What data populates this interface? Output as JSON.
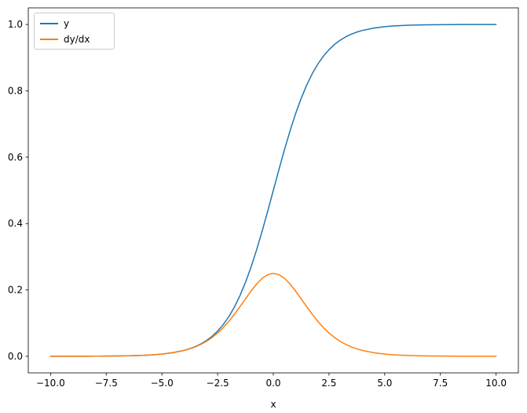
{
  "chart_data": {
    "type": "line",
    "title": "",
    "xlabel": "x",
    "ylabel": "",
    "xlim": [
      -11,
      11
    ],
    "ylim": [
      -0.05,
      1.05
    ],
    "x_ticks": [
      -10.0,
      -7.5,
      -5.0,
      -2.5,
      0.0,
      2.5,
      5.0,
      7.5,
      10.0
    ],
    "y_ticks": [
      0.0,
      0.2,
      0.4,
      0.6,
      0.8,
      1.0
    ],
    "grid": false,
    "legend_position": "upper left",
    "background_color": "#ffffff",
    "axis_color": "#000000",
    "x": [
      -10,
      -9.5,
      -9,
      -8.5,
      -8,
      -7.5,
      -7,
      -6.5,
      -6,
      -5.5,
      -5,
      -4.5,
      -4,
      -3.75,
      -3.5,
      -3.25,
      -3,
      -2.75,
      -2.5,
      -2.25,
      -2,
      -1.75,
      -1.5,
      -1.25,
      -1,
      -0.75,
      -0.5,
      -0.25,
      0,
      0.25,
      0.5,
      0.75,
      1,
      1.25,
      1.5,
      1.75,
      2,
      2.25,
      2.5,
      2.75,
      3,
      3.25,
      3.5,
      3.75,
      4,
      4.5,
      5,
      5.5,
      6,
      6.5,
      7,
      7.5,
      8,
      8.5,
      9,
      9.5,
      10
    ],
    "series": [
      {
        "name": "y",
        "color": "#1f77b4",
        "values": [
          5e-05,
          7e-05,
          0.00012,
          0.0002,
          0.00034,
          0.00055,
          0.00091,
          0.0015,
          0.00247,
          0.00407,
          0.00669,
          0.011,
          0.01799,
          0.02297,
          0.02931,
          0.03732,
          0.04743,
          0.06008,
          0.07586,
          0.09534,
          0.1192,
          0.14805,
          0.18243,
          0.2227,
          0.26894,
          0.32082,
          0.37754,
          0.43782,
          0.5,
          0.56218,
          0.62246,
          0.67918,
          0.73106,
          0.7773,
          0.81757,
          0.85195,
          0.8808,
          0.90466,
          0.92414,
          0.93992,
          0.95257,
          0.96268,
          0.97069,
          0.97703,
          0.98201,
          0.989,
          0.99331,
          0.99593,
          0.99753,
          0.9985,
          0.99909,
          0.99945,
          0.99966,
          0.9998,
          0.99988,
          0.99993,
          0.99995
        ]
      },
      {
        "name": "dy/dx",
        "color": "#ff7f0e",
        "values": [
          5e-05,
          7e-05,
          0.00012,
          0.0002,
          0.00034,
          0.00055,
          0.00091,
          0.0015,
          0.00246,
          0.00406,
          0.00665,
          0.01088,
          0.01766,
          0.02245,
          0.02845,
          0.03593,
          0.04518,
          0.05647,
          0.0701,
          0.08625,
          0.10499,
          0.12613,
          0.14915,
          0.1731,
          0.19661,
          0.21789,
          0.235,
          0.24613,
          0.25,
          0.24613,
          0.235,
          0.21789,
          0.19661,
          0.1731,
          0.14915,
          0.12613,
          0.10499,
          0.08625,
          0.0701,
          0.05647,
          0.04518,
          0.03593,
          0.02845,
          0.02245,
          0.01766,
          0.01088,
          0.00665,
          0.00406,
          0.00246,
          0.0015,
          0.00091,
          0.00055,
          0.00034,
          0.0002,
          0.00012,
          7e-05,
          5e-05
        ]
      }
    ]
  }
}
